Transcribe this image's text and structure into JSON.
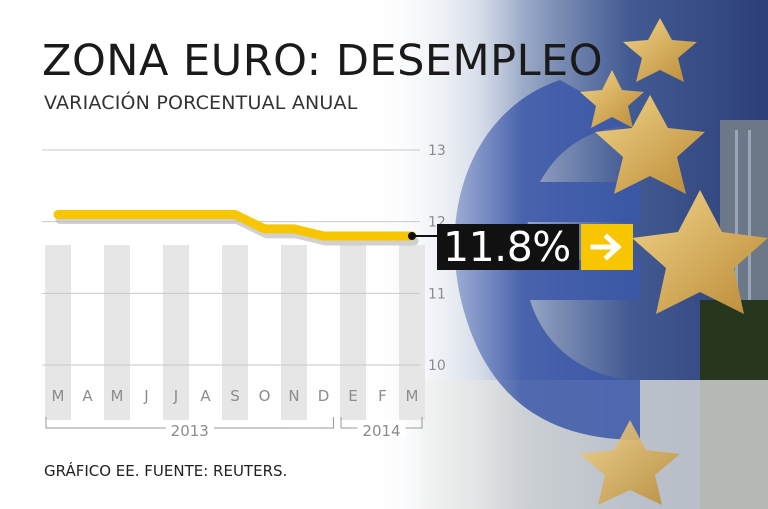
{
  "header": {
    "title": "ZONA EURO: DESEMPLEO",
    "subtitle": "VARIACIÓN PORCENTUAL ANUAL"
  },
  "footer": {
    "source": "GRÁFICO EE. FUENTE: REUTERS."
  },
  "callout": {
    "value": "11.8%",
    "icon": "arrow-right-icon",
    "color": "#f7c600"
  },
  "colors": {
    "line": "#f7c600",
    "line_shadow": "#bdbdbd",
    "bars": "#e6e6e6",
    "text": "#1a1a1a",
    "axis_text": "#8c8c8c"
  },
  "chart_data": {
    "type": "line",
    "title": "ZONA EURO: DESEMPLEO",
    "subtitle": "VARIACIÓN PORCENTUAL ANUAL",
    "categories": [
      "M",
      "A",
      "M",
      "J",
      "J",
      "A",
      "S",
      "O",
      "N",
      "D",
      "E",
      "F",
      "M"
    ],
    "year_labels": [
      {
        "label": "2013",
        "from": 0,
        "to": 9
      },
      {
        "label": "2014",
        "from": 10,
        "to": 12
      }
    ],
    "series": [
      {
        "values": [
          12.1,
          12.1,
          12.1,
          12.1,
          12.1,
          12.1,
          12.1,
          11.9,
          11.9,
          11.8,
          11.8,
          11.8,
          11.8
        ]
      }
    ],
    "ylim": [
      10,
      13
    ],
    "yticks": [
      10,
      11,
      12,
      13
    ],
    "grid": true
  }
}
